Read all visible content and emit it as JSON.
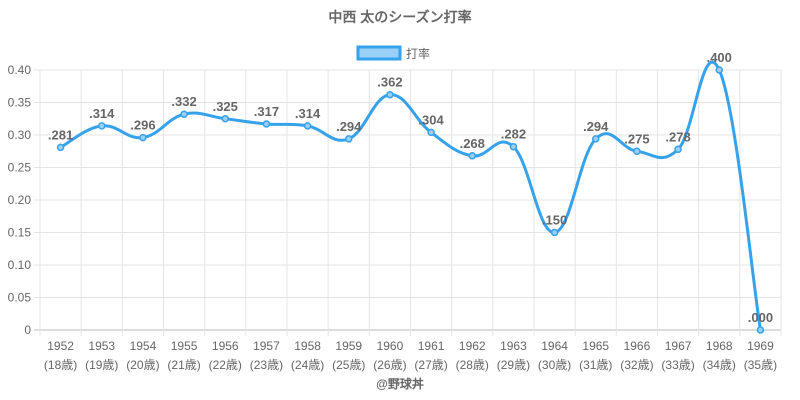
{
  "chart_data": {
    "type": "line",
    "title": "中西 太のシーズン打率",
    "legend": {
      "label": "打率",
      "position": "top"
    },
    "categories": [
      "1952",
      "1953",
      "1954",
      "1955",
      "1956",
      "1957",
      "1958",
      "1959",
      "1960",
      "1961",
      "1962",
      "1963",
      "1964",
      "1965",
      "1966",
      "1967",
      "1968",
      "1969"
    ],
    "age_labels": [
      "(18歳)",
      "(19歳)",
      "(20歳)",
      "(21歳)",
      "(22歳)",
      "(23歳)",
      "(24歳)",
      "(25歳)",
      "(26歳)",
      "(27歳)",
      "(28歳)",
      "(29歳)",
      "(30歳)",
      "(31歳)",
      "(32歳)",
      "(33歳)",
      "(34歳)",
      "(35歳)"
    ],
    "values": [
      0.281,
      0.314,
      0.296,
      0.332,
      0.325,
      0.317,
      0.314,
      0.294,
      0.362,
      0.304,
      0.268,
      0.282,
      0.15,
      0.294,
      0.275,
      0.278,
      0.4,
      0.0
    ],
    "data_labels": [
      ".281",
      ".314",
      ".296",
      ".332",
      ".325",
      ".317",
      ".314",
      ".294",
      ".362",
      ".304",
      ".268",
      ".282",
      ".150",
      ".294",
      ".275",
      ".278",
      ".400",
      ".000"
    ],
    "ylim": [
      0,
      0.4
    ],
    "yticks": [
      "0",
      "0.05",
      "0.10",
      "0.15",
      "0.20",
      "0.25",
      "0.30",
      "0.35",
      "0.40"
    ],
    "grid": true,
    "colors": {
      "line": "#36a2eb",
      "fill": "#9ad0f5",
      "grid": "#e5e5e5",
      "text": "#666666"
    }
  },
  "credit": "@野球丼"
}
